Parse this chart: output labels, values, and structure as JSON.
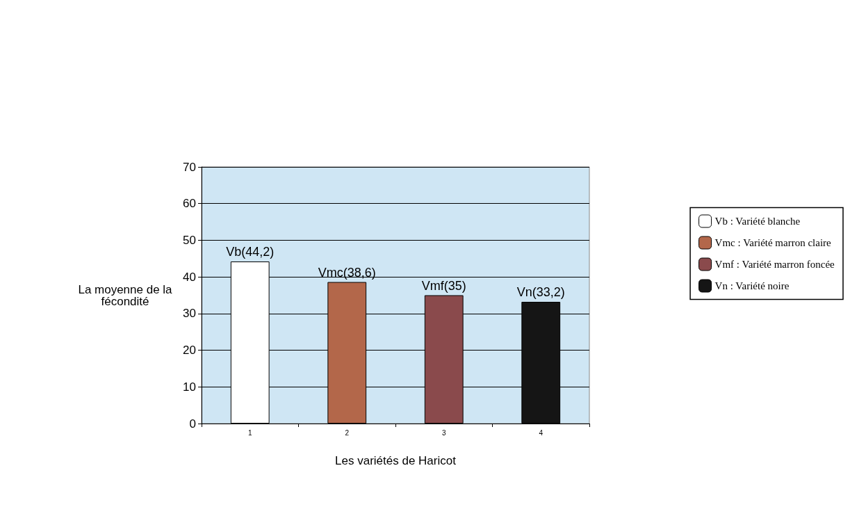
{
  "chart_data": {
    "type": "bar",
    "xlabel": "Les variétés de Haricot",
    "ylabel": "La moyenne de la\nfécondité",
    "categories": [
      "1",
      "2",
      "3",
      "4"
    ],
    "series": [
      {
        "name": "Vb : Variété blanche",
        "color": "#ffffff",
        "values": [
          44.2,
          null,
          null,
          null
        ],
        "value_labels": [
          "Vb(44,2)",
          null,
          null,
          null
        ]
      },
      {
        "name": "Vmc : Variété marron claire",
        "color": "#b3674a",
        "values": [
          null,
          38.6,
          null,
          null
        ],
        "value_labels": [
          null,
          "Vmc(38,6)",
          null,
          null
        ]
      },
      {
        "name": "Vmf : Variété marron foncée",
        "color": "#8a4a4c",
        "values": [
          null,
          null,
          35,
          null
        ],
        "value_labels": [
          null,
          null,
          "Vmf(35)",
          null
        ]
      },
      {
        "name": "Vn : Variété noire",
        "color": "#151515",
        "values": [
          null,
          null,
          null,
          33.2
        ],
        "value_labels": [
          null,
          null,
          null,
          "Vn(33,2)"
        ]
      }
    ],
    "ylim": [
      0,
      70
    ],
    "yticks": [
      0,
      10,
      20,
      30,
      40,
      50,
      60,
      70
    ],
    "grid": "y",
    "legend": "right"
  }
}
